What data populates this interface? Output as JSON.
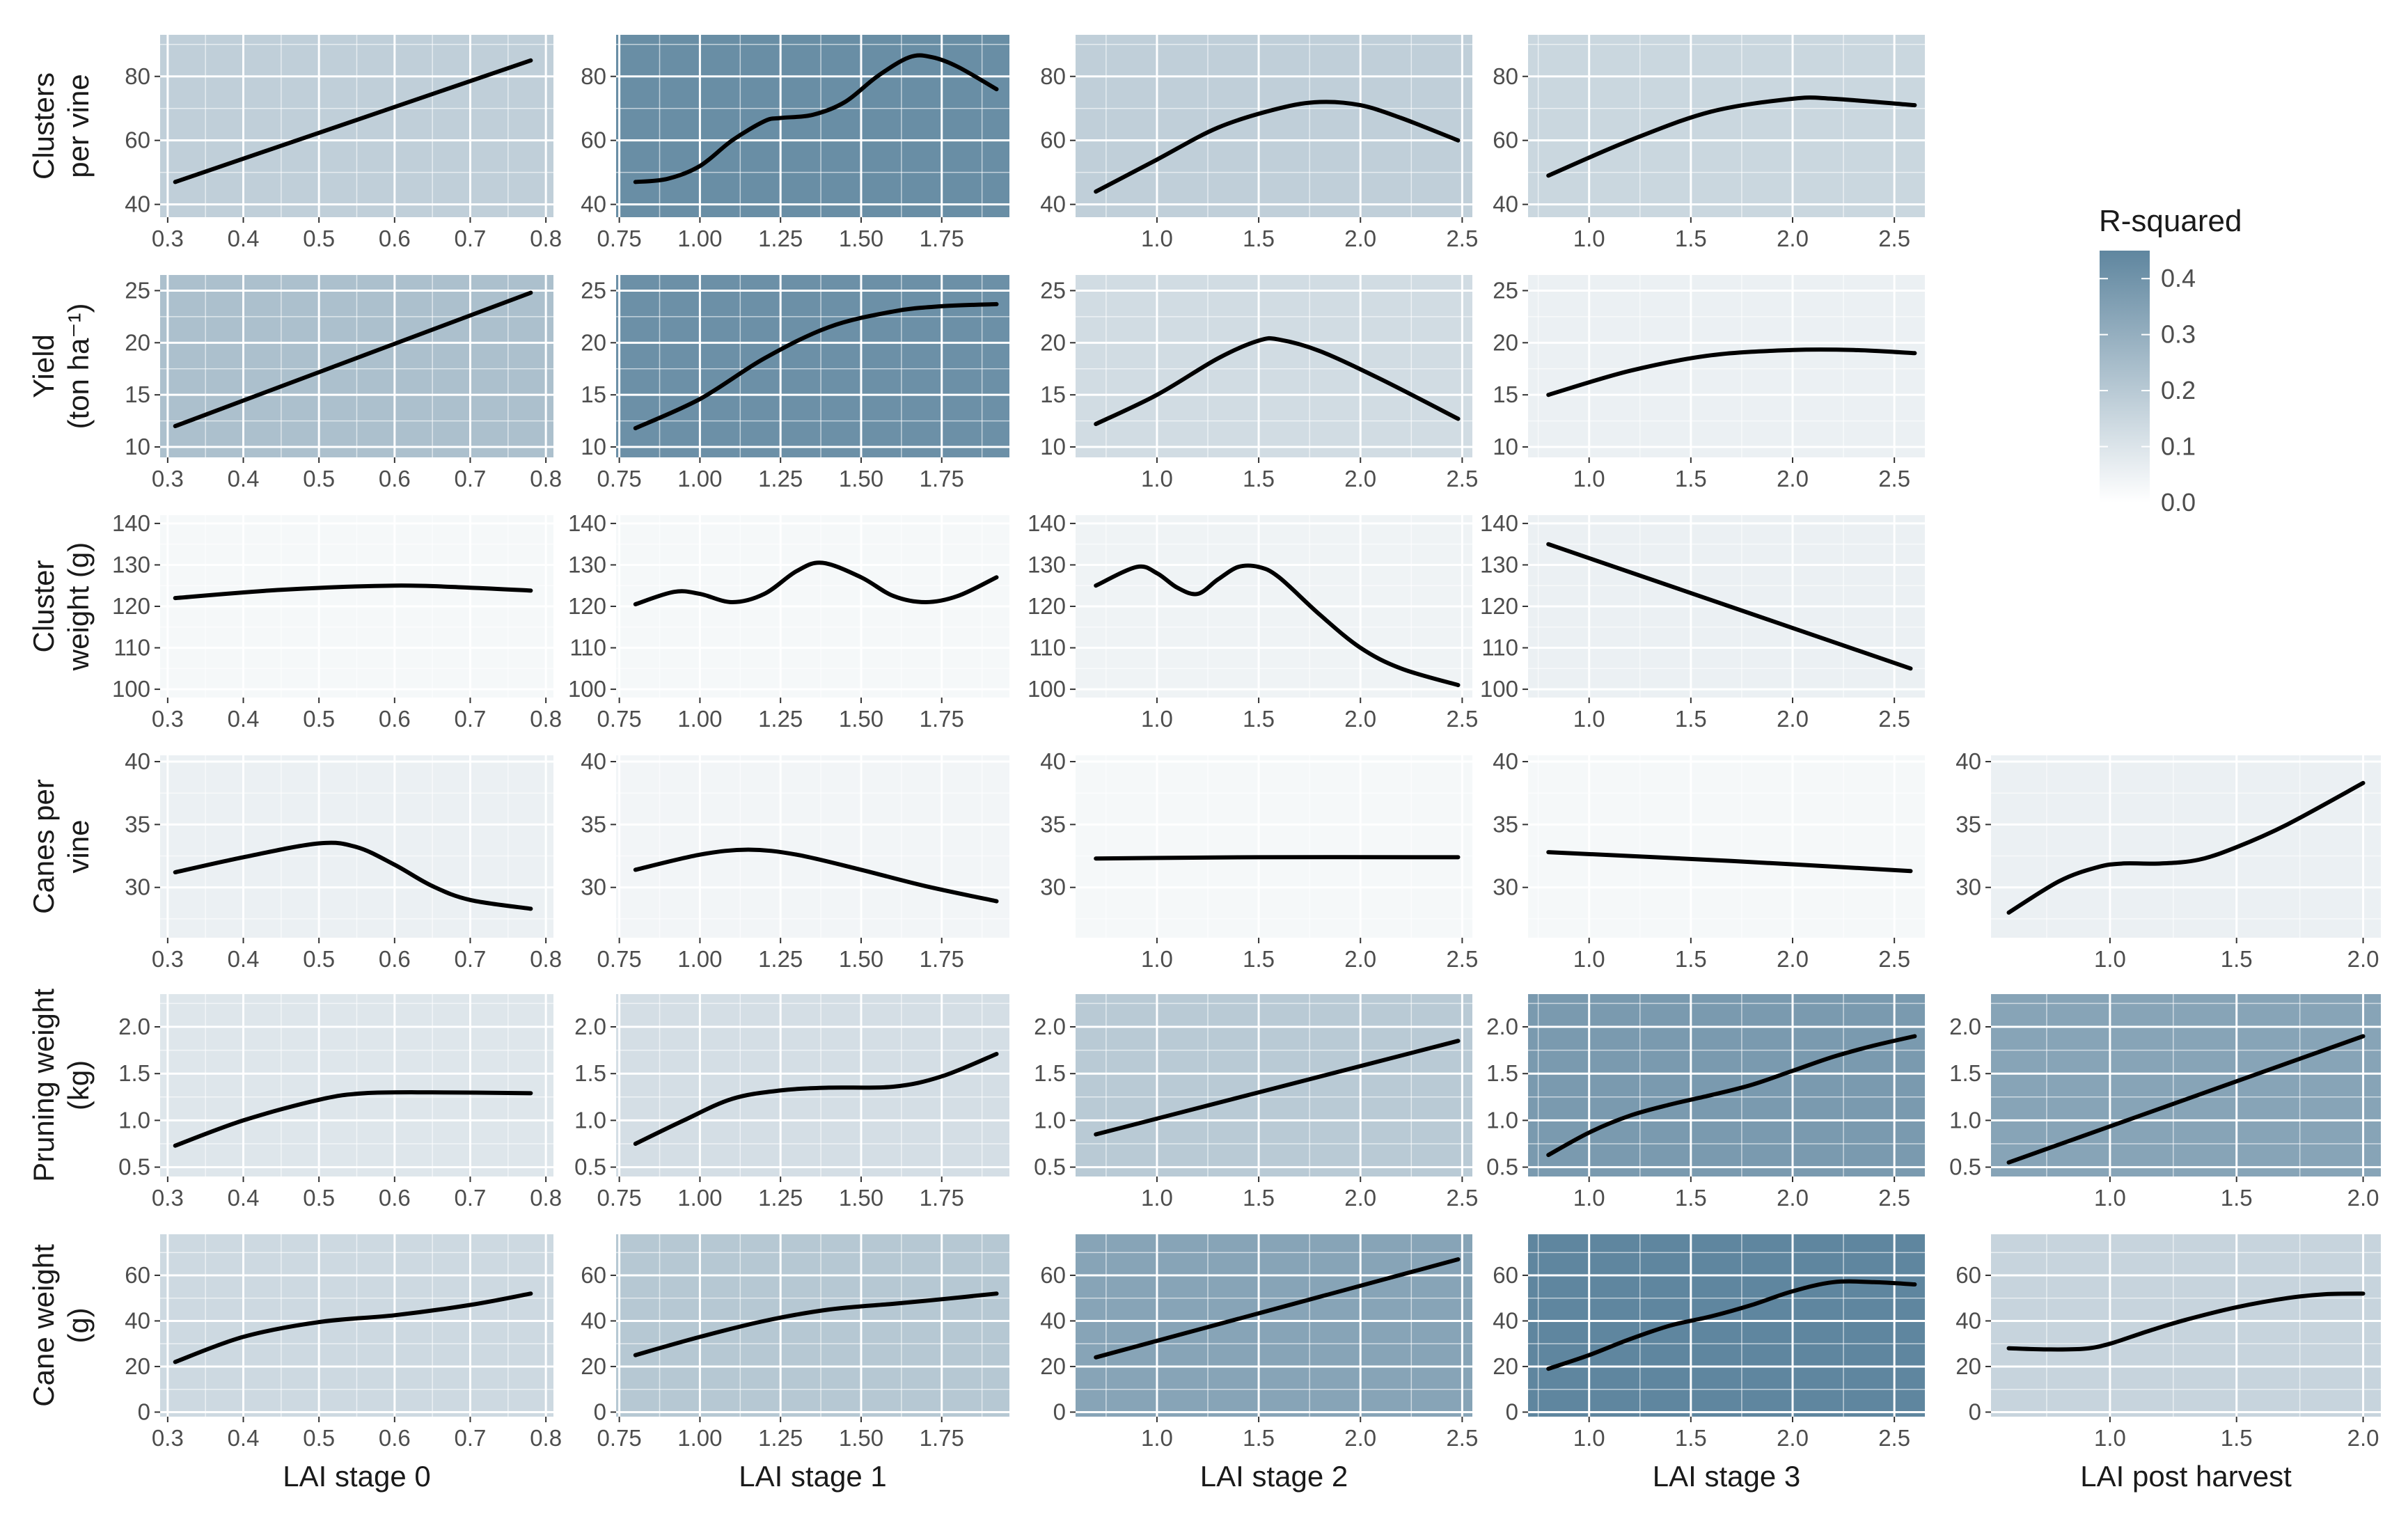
{
  "chart_data": {
    "type": "line",
    "colorscale": {
      "low": "#ffffff",
      "high": "#5f869f"
    },
    "gridline_color": "#ffffff",
    "line_color": "#000000",
    "legend": {
      "title": "R-squared",
      "ticks": [
        0.0,
        0.1,
        0.2,
        0.3,
        0.4
      ],
      "range": [
        0,
        0.45
      ],
      "placement": "right"
    },
    "rows": [
      {
        "label_lines": [
          "Clusters",
          "per vine"
        ],
        "ylim": [
          36,
          93
        ],
        "yticks": [
          40,
          60,
          80
        ]
      },
      {
        "label_lines": [
          "Yield",
          "(ton ha⁻¹)"
        ],
        "ylim": [
          9,
          26.5
        ],
        "yticks": [
          10,
          15,
          20,
          25
        ]
      },
      {
        "label_lines": [
          "Cluster",
          "weight (g)"
        ],
        "ylim": [
          98,
          142
        ],
        "yticks": [
          100,
          110,
          120,
          130,
          140
        ]
      },
      {
        "label_lines": [
          "Canes per",
          "vine"
        ],
        "ylim": [
          26,
          40.5
        ],
        "yticks": [
          30,
          35,
          40
        ]
      },
      {
        "label_lines": [
          "Pruning weight",
          "(kg)"
        ],
        "ylim": [
          0.4,
          2.35
        ],
        "yticks": [
          0.5,
          1.0,
          1.5,
          2.0
        ]
      },
      {
        "label_lines": [
          "Cane weight",
          "(g)"
        ],
        "ylim": [
          -2,
          78
        ],
        "yticks": [
          0,
          20,
          40,
          60
        ]
      }
    ],
    "columns": [
      {
        "xlabel": "LAI stage 0",
        "xlim": [
          0.29,
          0.81
        ],
        "xticks": [
          0.3,
          0.4,
          0.5,
          0.6,
          0.7,
          0.8
        ]
      },
      {
        "xlabel": "LAI stage 1",
        "xlim": [
          0.74,
          1.96
        ],
        "xticks": [
          0.75,
          1.0,
          1.25,
          1.5,
          1.75
        ]
      },
      {
        "xlabel": "LAI stage 2",
        "xlim": [
          0.6,
          2.55
        ],
        "xticks": [
          1.0,
          1.5,
          2.0,
          2.5
        ]
      },
      {
        "xlabel": "LAI stage 3",
        "xlim": [
          0.7,
          2.65
        ],
        "xticks": [
          1.0,
          1.5,
          2.0,
          2.5
        ]
      },
      {
        "xlabel": "LAI post harvest",
        "xlim": [
          0.53,
          2.07
        ],
        "xticks": [
          1.0,
          1.5,
          2.0
        ]
      }
    ],
    "panels": [
      {
        "row": 0,
        "col": 0,
        "r2": 0.16,
        "x": [
          0.31,
          0.78
        ],
        "y": [
          47,
          85
        ]
      },
      {
        "row": 0,
        "col": 1,
        "r2": 0.42,
        "x": [
          0.8,
          0.9,
          1.0,
          1.1,
          1.2,
          1.25,
          1.35,
          1.45,
          1.55,
          1.65,
          1.72,
          1.8,
          1.92
        ],
        "y": [
          47,
          48,
          52,
          60,
          66,
          67,
          68,
          72,
          80,
          86,
          86,
          83,
          76
        ]
      },
      {
        "row": 0,
        "col": 2,
        "r2": 0.16,
        "x": [
          0.7,
          1.0,
          1.3,
          1.6,
          1.8,
          2.0,
          2.2,
          2.48
        ],
        "y": [
          44,
          54,
          64,
          70,
          72,
          71,
          67,
          60
        ]
      },
      {
        "row": 0,
        "col": 3,
        "r2": 0.13,
        "x": [
          0.8,
          1.2,
          1.6,
          2.0,
          2.2,
          2.6
        ],
        "y": [
          49,
          60,
          69,
          73,
          73,
          71
        ]
      },
      {
        "row": 1,
        "col": 0,
        "r2": 0.22,
        "x": [
          0.31,
          0.78
        ],
        "y": [
          12,
          24.8
        ]
      },
      {
        "row": 1,
        "col": 1,
        "r2": 0.41,
        "x": [
          0.8,
          1.0,
          1.2,
          1.4,
          1.6,
          1.75,
          1.92
        ],
        "y": [
          11.8,
          14.6,
          18.5,
          21.5,
          23,
          23.5,
          23.7
        ]
      },
      {
        "row": 1,
        "col": 2,
        "r2": 0.11,
        "x": [
          0.7,
          1.0,
          1.3,
          1.5,
          1.6,
          1.8,
          2.1,
          2.48
        ],
        "y": [
          12.2,
          15,
          18.5,
          20.2,
          20.3,
          19.2,
          16.5,
          12.7
        ]
      },
      {
        "row": 1,
        "col": 3,
        "r2": 0.03,
        "x": [
          0.8,
          1.2,
          1.6,
          2.0,
          2.3,
          2.6
        ],
        "y": [
          15,
          17.3,
          18.8,
          19.3,
          19.3,
          19
        ]
      },
      {
        "row": 2,
        "col": 0,
        "r2": 0.0,
        "x": [
          0.31,
          0.45,
          0.6,
          0.7,
          0.78
        ],
        "y": [
          122,
          124,
          125,
          124.5,
          123.8
        ]
      },
      {
        "row": 2,
        "col": 1,
        "r2": 0.0,
        "x": [
          0.8,
          0.92,
          1.0,
          1.1,
          1.2,
          1.3,
          1.38,
          1.5,
          1.6,
          1.7,
          1.8,
          1.92
        ],
        "y": [
          120.5,
          123.5,
          123,
          121,
          123,
          128.5,
          130.5,
          127,
          122.5,
          121,
          122.5,
          127
        ]
      },
      {
        "row": 2,
        "col": 2,
        "r2": 0.02,
        "x": [
          0.7,
          0.9,
          1.0,
          1.1,
          1.2,
          1.3,
          1.4,
          1.5,
          1.6,
          1.8,
          2.0,
          2.2,
          2.48
        ],
        "y": [
          125,
          129.5,
          128,
          124.5,
          123,
          126.5,
          129.5,
          129.5,
          127,
          118,
          110,
          105,
          101
        ]
      },
      {
        "row": 2,
        "col": 3,
        "r2": 0.03,
        "x": [
          0.8,
          2.58
        ],
        "y": [
          135,
          105
        ]
      },
      {
        "row": 3,
        "col": 0,
        "r2": 0.03,
        "x": [
          0.31,
          0.4,
          0.5,
          0.55,
          0.6,
          0.65,
          0.7,
          0.78
        ],
        "y": [
          31.2,
          32.4,
          33.5,
          33.2,
          31.8,
          30.1,
          29,
          28.3
        ]
      },
      {
        "row": 3,
        "col": 1,
        "r2": 0.01,
        "x": [
          0.8,
          1.0,
          1.15,
          1.3,
          1.5,
          1.7,
          1.92
        ],
        "y": [
          31.4,
          32.6,
          33,
          32.6,
          31.4,
          30.1,
          28.9
        ]
      },
      {
        "row": 3,
        "col": 2,
        "r2": 0.0,
        "x": [
          0.7,
          1.5,
          2.48
        ],
        "y": [
          32.3,
          32.4,
          32.4
        ]
      },
      {
        "row": 3,
        "col": 3,
        "r2": 0.0,
        "x": [
          0.8,
          1.7,
          2.58
        ],
        "y": [
          32.8,
          32.1,
          31.3
        ]
      },
      {
        "row": 3,
        "col": 4,
        "r2": 0.03,
        "x": [
          0.6,
          0.8,
          0.95,
          1.05,
          1.2,
          1.35,
          1.5,
          1.7,
          2.0
        ],
        "y": [
          28,
          30.5,
          31.6,
          31.9,
          31.9,
          32.2,
          33.2,
          35,
          38.3
        ]
      },
      {
        "row": 4,
        "col": 0,
        "r2": 0.07,
        "x": [
          0.31,
          0.4,
          0.5,
          0.56,
          0.65,
          0.78
        ],
        "y": [
          0.73,
          1.0,
          1.22,
          1.29,
          1.3,
          1.29
        ]
      },
      {
        "row": 4,
        "col": 1,
        "r2": 0.1,
        "x": [
          0.8,
          0.95,
          1.1,
          1.25,
          1.4,
          1.6,
          1.75,
          1.92
        ],
        "y": [
          0.75,
          1.0,
          1.23,
          1.32,
          1.35,
          1.36,
          1.47,
          1.71
        ]
      },
      {
        "row": 4,
        "col": 2,
        "r2": 0.18,
        "x": [
          0.7,
          2.48
        ],
        "y": [
          0.85,
          1.85
        ]
      },
      {
        "row": 4,
        "col": 3,
        "r2": 0.37,
        "x": [
          0.8,
          1.0,
          1.2,
          1.4,
          1.6,
          1.8,
          2.0,
          2.2,
          2.4,
          2.6
        ],
        "y": [
          0.63,
          0.87,
          1.05,
          1.17,
          1.27,
          1.38,
          1.53,
          1.68,
          1.8,
          1.9
        ]
      },
      {
        "row": 4,
        "col": 4,
        "r2": 0.33,
        "x": [
          0.6,
          2.0
        ],
        "y": [
          0.55,
          1.9
        ]
      },
      {
        "row": 5,
        "col": 0,
        "r2": 0.12,
        "x": [
          0.31,
          0.4,
          0.5,
          0.6,
          0.7,
          0.78
        ],
        "y": [
          22,
          33,
          39.5,
          42.5,
          47,
          52
        ]
      },
      {
        "row": 5,
        "col": 1,
        "r2": 0.19,
        "x": [
          0.8,
          1.0,
          1.2,
          1.4,
          1.6,
          1.75,
          1.92
        ],
        "y": [
          25,
          33,
          40,
          45,
          47.5,
          49.5,
          52
        ]
      },
      {
        "row": 5,
        "col": 2,
        "r2": 0.33,
        "x": [
          0.7,
          2.48
        ],
        "y": [
          24,
          67
        ]
      },
      {
        "row": 5,
        "col": 3,
        "r2": 0.45,
        "x": [
          0.8,
          1.0,
          1.2,
          1.4,
          1.6,
          1.8,
          2.0,
          2.2,
          2.4,
          2.6
        ],
        "y": [
          19,
          25,
          32,
          38,
          42,
          47,
          53,
          57,
          57,
          56
        ]
      },
      {
        "row": 5,
        "col": 4,
        "r2": 0.14,
        "x": [
          0.6,
          0.75,
          0.9,
          1.0,
          1.15,
          1.3,
          1.5,
          1.7,
          1.85,
          2.0
        ],
        "y": [
          28,
          27.5,
          27.8,
          30,
          35.5,
          40.5,
          46,
          50,
          51.7,
          52
        ]
      }
    ]
  }
}
